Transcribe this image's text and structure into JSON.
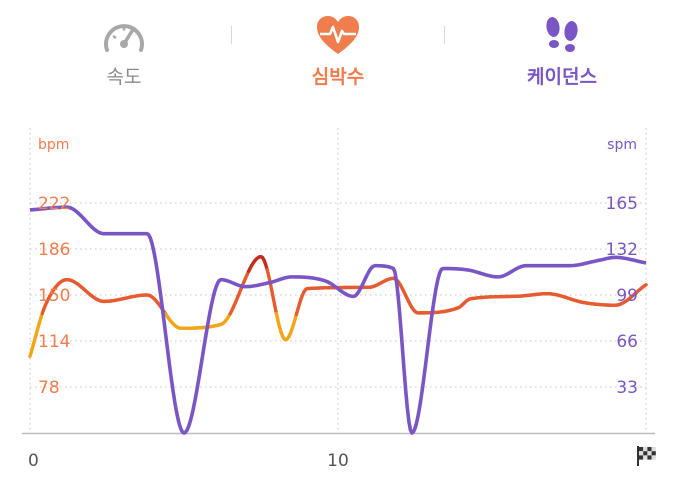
{
  "tabs": [
    {
      "label": "속도",
      "icon": "speedometer-icon",
      "color": "#9e9e9e"
    },
    {
      "label": "심박수",
      "icon": "heart-pulse-icon",
      "color": "#f07d4d"
    },
    {
      "label": "케이던스",
      "icon": "footsteps-icon",
      "color": "#7a55c6"
    }
  ],
  "chart_data": {
    "type": "line",
    "title": "",
    "xlabel": "",
    "x_ticks": [
      "0",
      "10"
    ],
    "xlim": [
      0,
      20
    ],
    "grid": true,
    "finish_icon": "checkered-flag-icon",
    "left_axis": {
      "unit": "bpm",
      "ticks": [
        78,
        114,
        150,
        186,
        222
      ],
      "range": [
        42,
        258
      ],
      "color": "#f07d4d"
    },
    "right_axis": {
      "unit": "spm",
      "ticks": [
        33,
        66,
        99,
        132,
        165
      ],
      "range": [
        0,
        198
      ],
      "color": "#7a55c6"
    },
    "heart_rate_colors": {
      "low": "#f2a617",
      "mid": "#e65b30",
      "high": "#c62a1a"
    },
    "series": [
      {
        "axis": "left",
        "x": [
          0,
          0.5,
          1.2,
          2.4,
          3.8,
          4.9,
          6.2,
          7.5,
          8.3,
          9.0,
          11.0,
          11.8,
          12.6,
          13.9,
          14.3,
          15.8,
          16.8,
          18.0,
          19.0,
          20.0
        ],
        "values": [
          102,
          142,
          162,
          145,
          150,
          124,
          127,
          180,
          115,
          155,
          156,
          163,
          136,
          140,
          147,
          149,
          151,
          144,
          142,
          158
        ]
      },
      {
        "axis": "right",
        "x": [
          0,
          1.2,
          2.4,
          3.8,
          5.0,
          6.2,
          7.0,
          7.8,
          8.5,
          9.6,
          10.5,
          11.2,
          11.8,
          12.4,
          13.4,
          14.2,
          15.2,
          16.1,
          17.5,
          18.5,
          19.0,
          20.0
        ],
        "values": [
          160,
          162,
          143,
          143,
          0,
          110,
          105,
          108,
          112,
          109,
          98,
          120,
          118,
          0,
          118,
          117,
          112,
          120,
          120,
          124,
          126,
          122
        ]
      }
    ]
  }
}
